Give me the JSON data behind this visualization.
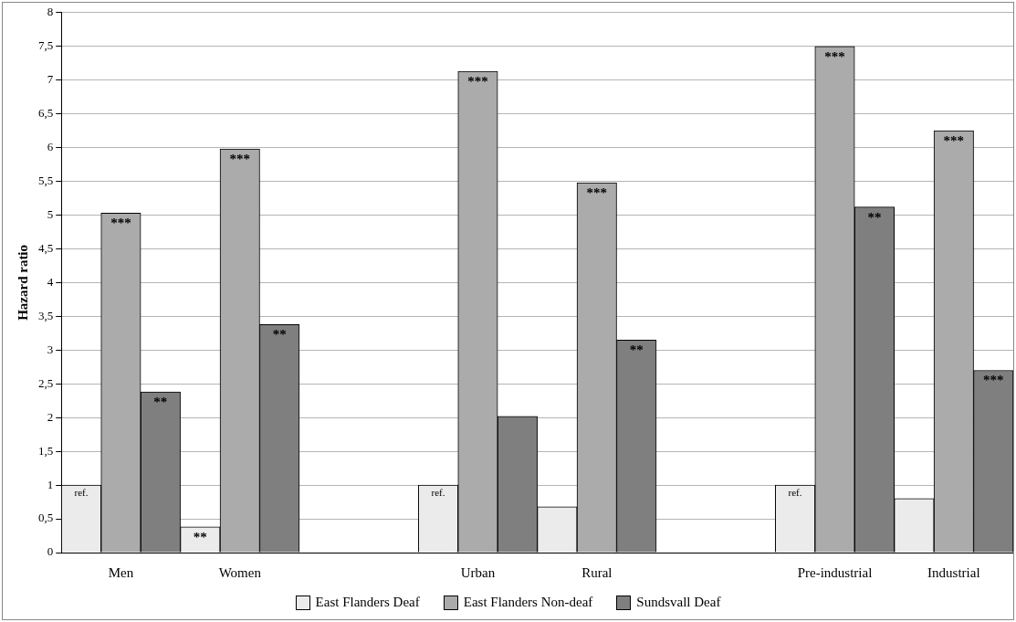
{
  "chart_data": {
    "type": "bar",
    "ylabel": "Hazard ratio",
    "categories": [
      "Men",
      "Women",
      null,
      "Urban",
      "Rural",
      null,
      "Pre-industrial",
      "Industrial"
    ],
    "series": [
      {
        "name": "East Flanders Deaf",
        "color": "#ebebeb",
        "values": [
          1,
          0.38,
          null,
          1,
          0.68,
          null,
          1,
          0.8
        ],
        "value_labels": [
          "ref.",
          "**",
          null,
          "ref.",
          null,
          null,
          "ref.",
          null
        ]
      },
      {
        "name": "East Flanders Non-deaf",
        "color": "#ababab",
        "values": [
          5.03,
          5.98,
          null,
          7.13,
          5.48,
          null,
          7.5,
          6.25
        ],
        "value_labels": [
          "***",
          "***",
          null,
          "***",
          "***",
          null,
          "***",
          "***"
        ]
      },
      {
        "name": "Sundsvall Deaf",
        "color": "#7f7f7f",
        "values": [
          2.38,
          3.38,
          null,
          2.02,
          3.15,
          null,
          5.12,
          2.7
        ],
        "value_labels": [
          "**",
          "**",
          null,
          null,
          "**",
          null,
          "**",
          "***"
        ]
      }
    ],
    "ylim": [
      0,
      8
    ],
    "yticks": [
      0,
      {
        "value": 0.5,
        "label": "0,5"
      },
      1,
      {
        "value": 1.5,
        "label": "1,5"
      },
      2,
      {
        "value": 2.5,
        "label": "2,5"
      },
      3,
      {
        "value": 3.5,
        "label": "3,5"
      },
      4,
      {
        "value": 4.5,
        "label": "4,5"
      },
      5,
      {
        "value": 5.5,
        "label": "5,5"
      },
      6,
      {
        "value": 6.5,
        "label": "6,5"
      },
      7,
      {
        "value": 7.5,
        "label": "7,5"
      },
      8
    ],
    "grid": "y",
    "legend": "bottom"
  }
}
